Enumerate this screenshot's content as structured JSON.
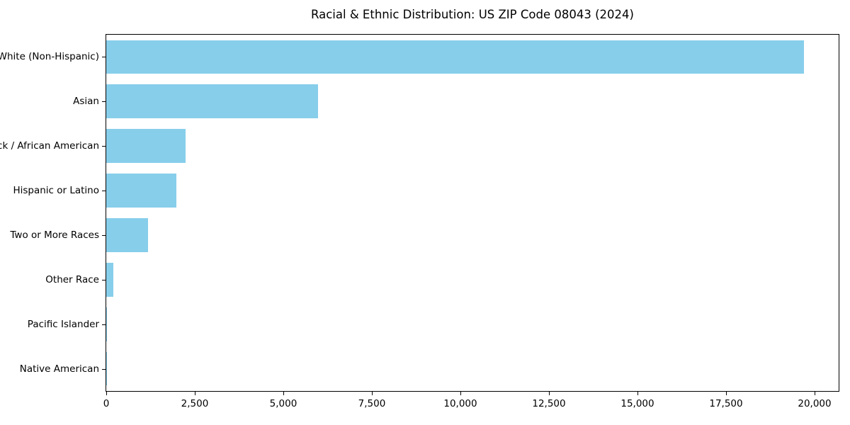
{
  "chart_data": {
    "type": "bar",
    "orientation": "horizontal",
    "title": "Racial & Ethnic Distribution: US ZIP Code 08043 (2024)",
    "categories": [
      "White (Non-Hispanic)",
      "Asian",
      "Black / African American",
      "Hispanic or Latino",
      "Two or More Races",
      "Other Race",
      "Pacific Islander",
      "Native American"
    ],
    "values": [
      19700,
      5980,
      2230,
      1980,
      1180,
      190,
      25,
      10
    ],
    "xlabel": "",
    "ylabel": "",
    "xlim": [
      0,
      20680
    ],
    "x_ticks": [
      0,
      2500,
      5000,
      7500,
      10000,
      12500,
      15000,
      17500,
      20000
    ],
    "x_tick_labels": [
      "0",
      "2,500",
      "5,000",
      "7,500",
      "10,000",
      "12,500",
      "15,000",
      "17,500",
      "20,000"
    ],
    "bar_color": "#87CEEB",
    "grid": false,
    "legend_position": "none",
    "background_color": "#ffffff",
    "spine_color": "#000000"
  }
}
